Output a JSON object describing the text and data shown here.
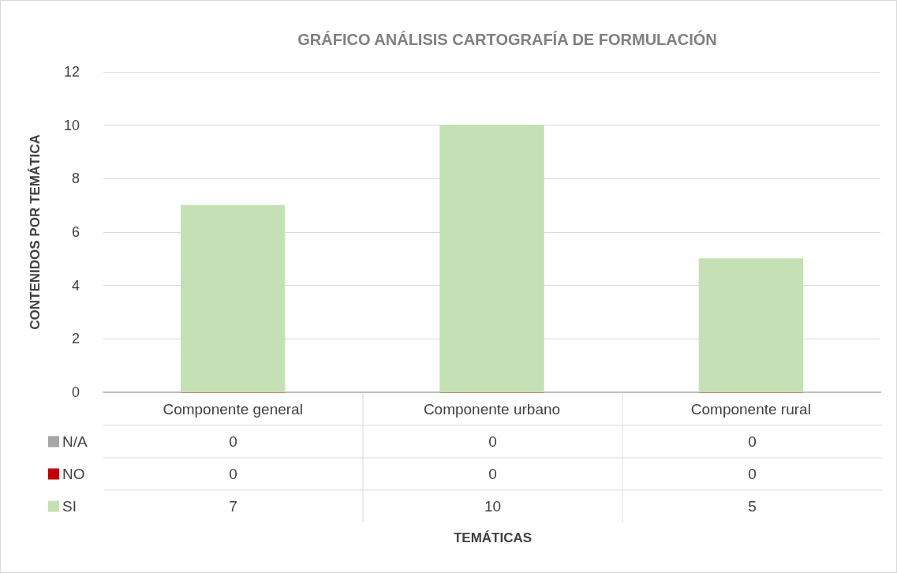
{
  "chart_data": {
    "type": "bar",
    "title": "GRÁFICO ANÁLISIS CARTOGRAFÍA DE FORMULACIÓN",
    "annotations": [
      "TEMÁTICAS"
    ],
    "ylabel": "CONTENIDOS POR TEMÁTICA",
    "categories": [
      "Componente general",
      "Componente urbano",
      "Componente rural"
    ],
    "series": [
      {
        "name": "N/A",
        "color": "#a6a6a6",
        "values": [
          0,
          0,
          0
        ]
      },
      {
        "name": "NO",
        "color": "#c00000",
        "values": [
          0,
          0,
          0
        ]
      },
      {
        "name": "SI",
        "color": "#c5e0b4",
        "values": [
          7,
          10,
          5
        ]
      }
    ],
    "stacked": true,
    "ylim": [
      0,
      12
    ],
    "yticks": [
      0,
      2,
      4,
      6,
      8,
      10,
      12
    ],
    "grid": "y",
    "data_labels": true,
    "legend": "bottom"
  }
}
